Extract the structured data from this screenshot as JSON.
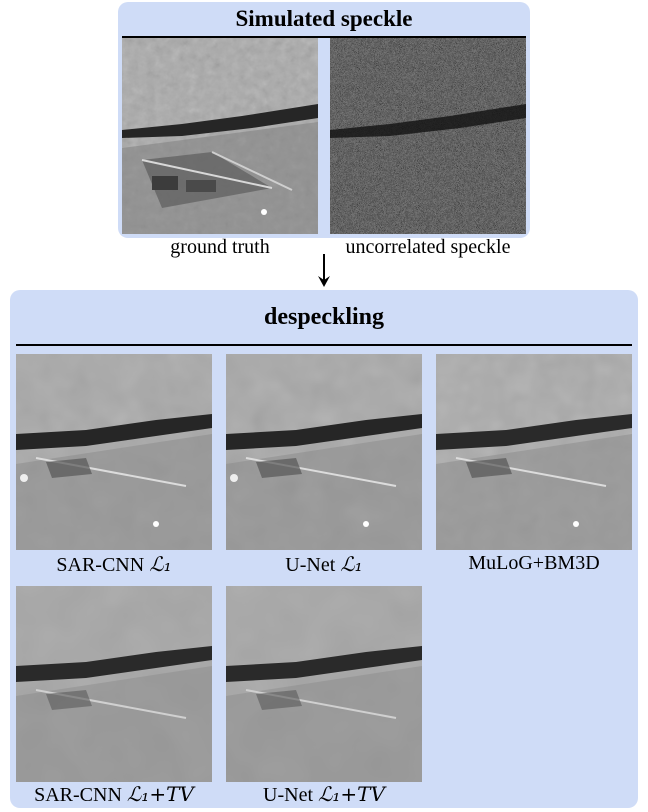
{
  "top_panel": {
    "title": "Simulated speckle",
    "captions": {
      "ground_truth": "ground truth",
      "speckle": "uncorrelated speckle"
    }
  },
  "bottom_panel": {
    "title": "despeckling",
    "results": [
      {
        "name": "SAR-CNN",
        "loss": "ℒ₁"
      },
      {
        "name": "U-Net",
        "loss": "ℒ₁"
      },
      {
        "name": "MuLoG+BM3D",
        "loss": ""
      },
      {
        "name": "SAR-CNN",
        "loss": "ℒ₁+TV"
      },
      {
        "name": "U-Net",
        "loss": "ℒ₁+TV"
      }
    ]
  },
  "colors": {
    "panel_fill": "#cfdcf7",
    "rule": "#000000"
  }
}
